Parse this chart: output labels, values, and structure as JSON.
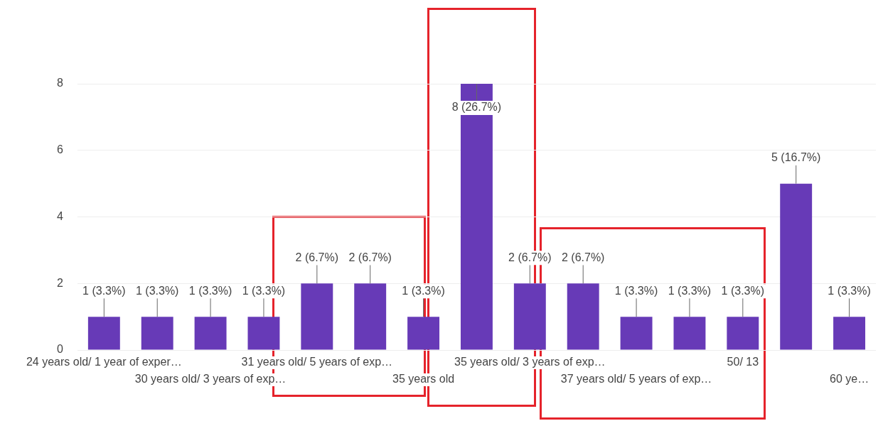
{
  "chart_data": {
    "type": "bar",
    "categories": [
      "24 years old/ 1 year of exper…",
      null,
      "30 years old/ 3 years of exp…",
      null,
      "31 years old/ 5 years of exp…",
      null,
      "35 years old",
      null,
      "35 years old/ 3 years of exp…",
      null,
      "37 years old/ 5 years of exp…",
      null,
      "50/ 13",
      null,
      "60 ye…"
    ],
    "values": [
      1,
      1,
      1,
      1,
      2,
      2,
      1,
      8,
      2,
      2,
      1,
      1,
      1,
      5,
      1
    ],
    "value_labels": [
      "1 (3.3%)",
      "1 (3.3%)",
      "1 (3.3%)",
      "1 (3.3%)",
      "2 (6.7%)",
      "2 (6.7%)",
      "1 (3.3%)",
      "8 (26.7%)",
      "2 (6.7%)",
      "2 (6.7%)",
      "1 (3.3%)",
      "1 (3.3%)",
      "1 (3.3%)",
      "5 (16.7%)",
      "1 (3.3%)"
    ],
    "color": "#673ab7",
    "ylim": [
      0,
      8
    ],
    "yticks": [
      0,
      2,
      4,
      6,
      8
    ],
    "grid": "y",
    "legend": false
  }
}
